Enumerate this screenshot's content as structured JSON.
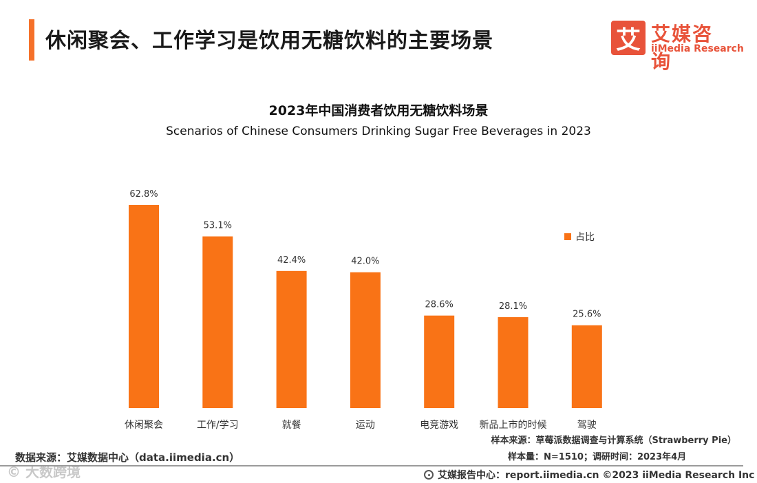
{
  "header": {
    "title": "休闲聚会、工作学习是饮用无糖饮料的主要场景"
  },
  "logo": {
    "mark": "艾",
    "name_cn": "艾媒咨询",
    "name_en": "iiMedia Research"
  },
  "colors": {
    "accent": "#f5712a",
    "bar": "#f97316",
    "brand": "#e8533a"
  },
  "chart_data": {
    "type": "bar",
    "title": "2023年中国消费者饮用无糖饮料场景",
    "subtitle": "Scenarios of Chinese Consumers Drinking Sugar Free Beverages in 2023",
    "categories": [
      "休闲聚会",
      "工作/学习",
      "就餐",
      "运动",
      "电竞游戏",
      "新品上市的时候",
      "驾驶"
    ],
    "values": [
      62.8,
      53.1,
      42.4,
      42.0,
      28.6,
      28.1,
      25.6
    ],
    "value_labels": [
      "62.8%",
      "53.1%",
      "42.4%",
      "42.0%",
      "28.6%",
      "28.1%",
      "25.6%"
    ],
    "series": [
      {
        "name": "占比",
        "values": [
          62.8,
          53.1,
          42.4,
          42.0,
          28.6,
          28.1,
          25.6
        ]
      }
    ],
    "unit": "%",
    "ylim": [
      0,
      62.8
    ],
    "legend_position": "right",
    "grid": false,
    "xlabel": "",
    "ylabel": ""
  },
  "notes": {
    "sample_source": "样本来源：草莓派数据调查与计算系统（Strawberry Pie）",
    "sample_size": "样本量：N=1510；调研时间：2023年4月",
    "data_source": "数据来源：艾媒数据中心（data.iimedia.cn）",
    "watermark": "© 大数跨境"
  },
  "footer": {
    "text": "艾媒报告中心：report.iimedia.cn  ©2023  iiMedia Research  Inc"
  }
}
